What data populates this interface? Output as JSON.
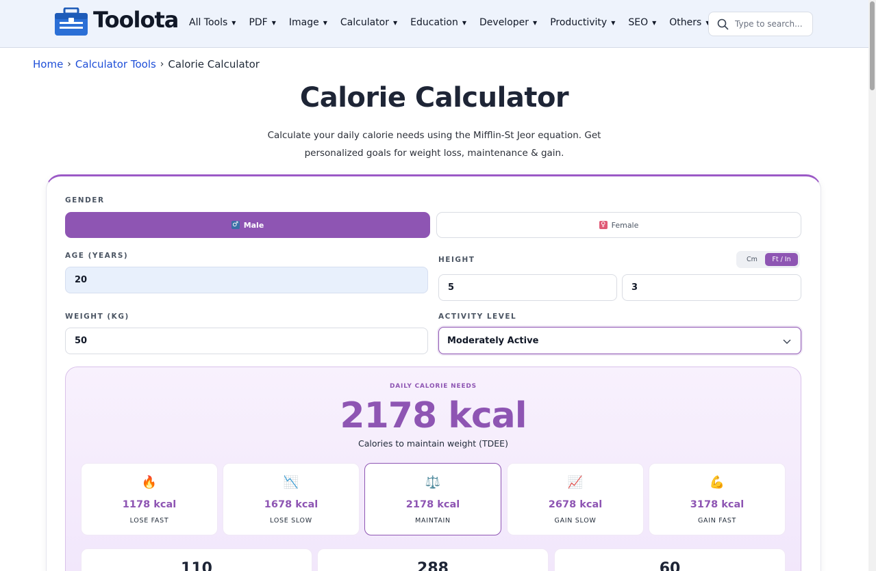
{
  "nav": {
    "logo_text": "Toolota",
    "menu": [
      "All Tools",
      "PDF",
      "Image",
      "Calculator",
      "Education",
      "Developer",
      "Productivity",
      "SEO",
      "Others"
    ],
    "search_placeholder": "Type to search..."
  },
  "breadcrumb": {
    "home": "Home",
    "category": "Calculator Tools",
    "current": "Calorie Calculator"
  },
  "page": {
    "title": "Calorie Calculator",
    "subtitle": "Calculate your daily calorie needs using the Mifflin-St Jeor equation. Get personalized goals for weight loss, maintenance & gain."
  },
  "form": {
    "gender_label": "GENDER",
    "male_label": "Male",
    "female_label": "Female",
    "male_symbol": "♂",
    "female_symbol": "♀",
    "age_label": "AGE (YEARS)",
    "age_value": "20",
    "height_label": "HEIGHT",
    "unit_cm": "Cm",
    "unit_ft": "Ft / In",
    "height_ft": "5",
    "height_in": "3",
    "weight_label": "WEIGHT (KG)",
    "weight_value": "50",
    "activity_label": "ACTIVITY LEVEL",
    "activity_value": "Moderately Active"
  },
  "result": {
    "label": "DAILY CALORIE NEEDS",
    "value": "2178 kcal",
    "sub": "Calories to maintain weight (TDEE)",
    "goals": [
      {
        "emoji": "🔥",
        "value": "1178 kcal",
        "label": "LOSE FAST"
      },
      {
        "emoji": "📉",
        "value": "1678 kcal",
        "label": "LOSE SLOW"
      },
      {
        "emoji": "⚖️",
        "value": "2178 kcal",
        "label": "MAINTAIN"
      },
      {
        "emoji": "📈",
        "value": "2678 kcal",
        "label": "GAIN SLOW"
      },
      {
        "emoji": "💪",
        "value": "3178 kcal",
        "label": "GAIN FAST"
      }
    ],
    "macros": [
      "110",
      "288",
      "60"
    ]
  },
  "colors": {
    "accent": "#8e55b3",
    "nav_bg": "#eef3fc",
    "link": "#1d4ed8"
  }
}
